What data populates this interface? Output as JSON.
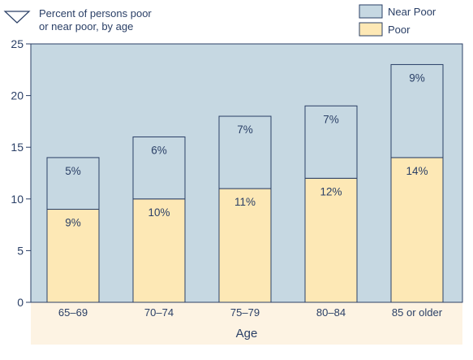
{
  "header_note": {
    "line1": "Percent of persons poor",
    "line2": "or near poor, by age",
    "icon": "triangle-down-icon"
  },
  "chart_data": {
    "type": "bar",
    "stacked": true,
    "categories": [
      "65–69",
      "70–74",
      "75–79",
      "80–84",
      "85 or older"
    ],
    "series": [
      {
        "name": "Poor",
        "values": [
          9,
          10,
          11,
          12,
          14
        ],
        "labels": [
          "9%",
          "10%",
          "11%",
          "12%",
          "14%"
        ],
        "color": "#fde8b5"
      },
      {
        "name": "Near Poor",
        "values": [
          5,
          6,
          7,
          7,
          9
        ],
        "labels": [
          "5%",
          "6%",
          "7%",
          "7%",
          "9%"
        ],
        "color": "#c6d8e2"
      }
    ],
    "xlabel": "Age",
    "ylabel": "",
    "ylim": [
      0,
      25
    ],
    "yticks": [
      0,
      5,
      10,
      15,
      20,
      25
    ],
    "grid": false,
    "legend_position": "top-right",
    "plot_background": "#c6d8e2",
    "xaxis_band_background": "#fdf3e3",
    "axis_color": "#2a3f66"
  }
}
